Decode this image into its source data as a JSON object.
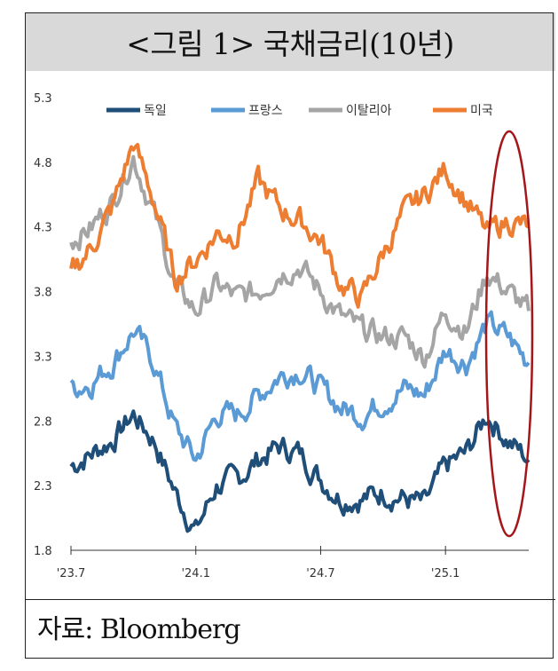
{
  "header": {
    "title": "<그림 1> 국채금리(10년)"
  },
  "footer": {
    "source": "자료: Bloomberg"
  },
  "chart_data": {
    "type": "line",
    "title": "<그림 1> 국채금리(10년)",
    "xlabel": "",
    "ylabel": "",
    "ylim": [
      1.8,
      5.3
    ],
    "y_ticks": [
      "5.3",
      "4.8",
      "4.3",
      "3.8",
      "3.3",
      "2.8",
      "2.3",
      "1.8"
    ],
    "x_ticks": [
      "'23.7",
      "'24.1",
      "'24.7",
      "'25.1"
    ],
    "legend_position": "top",
    "grid": false,
    "annotation": "red ellipse highlighting the most recent period",
    "x": [
      "2023-07",
      "2023-08",
      "2023-09",
      "2023-10",
      "2023-11",
      "2023-12",
      "2024-01",
      "2024-02",
      "2024-03",
      "2024-04",
      "2024-05",
      "2024-06",
      "2024-07",
      "2024-08",
      "2024-09",
      "2024-10",
      "2024-11",
      "2024-12",
      "2025-01",
      "2025-02",
      "2025-03",
      "2025-04",
      "2025-05"
    ],
    "series": [
      {
        "name": "독일",
        "color": "#1f4e79",
        "values": [
          2.45,
          2.55,
          2.65,
          2.85,
          2.65,
          2.25,
          1.95,
          2.3,
          2.35,
          2.5,
          2.6,
          2.55,
          2.35,
          2.2,
          2.2,
          2.25,
          2.2,
          2.15,
          2.45,
          2.55,
          2.85,
          2.65,
          2.5
        ]
      },
      {
        "name": "프랑스",
        "color": "#5b9bd5",
        "values": [
          3.05,
          3.1,
          3.25,
          3.5,
          3.25,
          2.75,
          2.5,
          2.85,
          2.85,
          3.0,
          3.15,
          3.2,
          3.05,
          2.9,
          2.85,
          2.95,
          3.05,
          3.0,
          3.35,
          3.25,
          3.55,
          3.45,
          3.25
        ]
      },
      {
        "name": "이탈리아",
        "color": "#a5a5a5",
        "values": [
          4.2,
          4.3,
          4.5,
          4.85,
          4.4,
          3.85,
          3.65,
          3.85,
          3.75,
          3.8,
          3.95,
          4.0,
          3.8,
          3.6,
          3.5,
          3.45,
          3.45,
          3.3,
          3.65,
          3.5,
          3.95,
          3.8,
          3.65
        ]
      },
      {
        "name": "미국",
        "color": "#ed7d31",
        "values": [
          3.95,
          4.15,
          4.45,
          4.95,
          4.5,
          3.9,
          4.05,
          4.25,
          4.25,
          4.65,
          4.45,
          4.35,
          4.2,
          3.85,
          3.75,
          4.1,
          4.4,
          4.55,
          4.75,
          4.5,
          4.25,
          4.35,
          4.3
        ]
      }
    ]
  }
}
